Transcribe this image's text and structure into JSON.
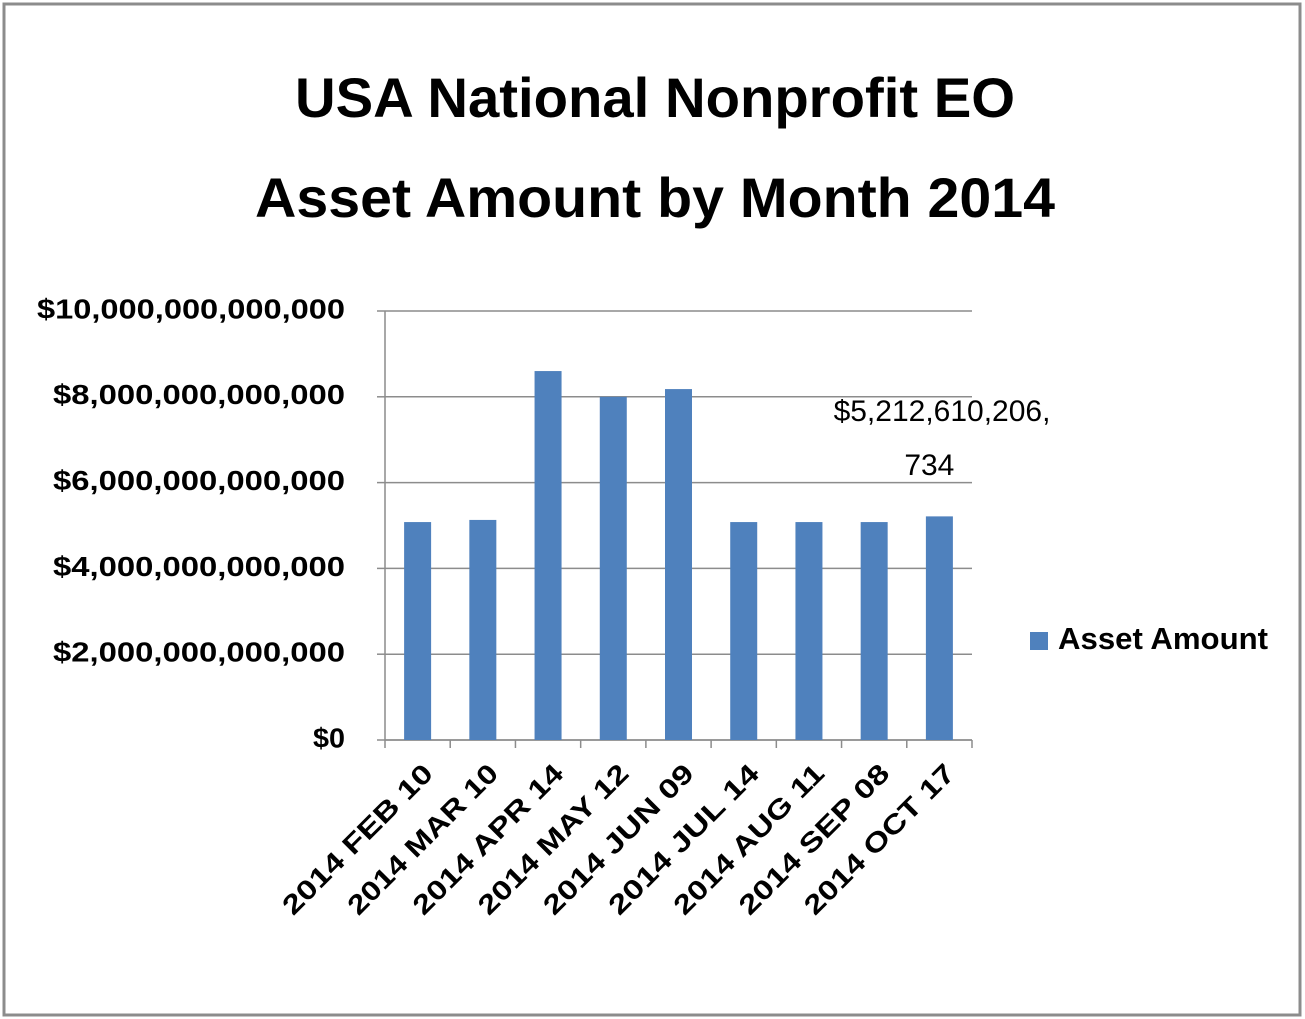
{
  "chart_data": {
    "type": "bar",
    "title": [
      "USA National Nonprofit EO",
      "Asset Amount by Month 2014"
    ],
    "categories": [
      "2014 FEB 10",
      "2014 MAR 10",
      "2014 APR 14",
      "2014 MAY 12",
      "2014 JUN 09",
      "2014 JUL 14",
      "2014 AUG 11",
      "2014 SEP 08",
      "2014 OCT 17"
    ],
    "series": [
      {
        "name": "Asset Amount",
        "color": "#4f81bd",
        "values": [
          5080000000000,
          5130000000000,
          8600000000000,
          8000000000000,
          8180000000000,
          5080000000000,
          5080000000000,
          5080000000000,
          5212610206734
        ],
        "value_labels": [
          null,
          null,
          null,
          null,
          null,
          null,
          null,
          null,
          "$5,212,610,206,734"
        ]
      }
    ],
    "ylim": [
      0,
      10000000000000
    ],
    "yticks": [
      {
        "value": 0,
        "label": "$0"
      },
      {
        "value": 2000000000000,
        "label": "$2,000,000,000,000"
      },
      {
        "value": 4000000000000,
        "label": "$4,000,000,000,000"
      },
      {
        "value": 6000000000000,
        "label": "$6,000,000,000,000"
      },
      {
        "value": 8000000000000,
        "label": "$8,000,000,000,000"
      },
      {
        "value": 10000000000000,
        "label": "$10,000,000,000,000"
      }
    ],
    "grid": true,
    "legend": "right"
  }
}
